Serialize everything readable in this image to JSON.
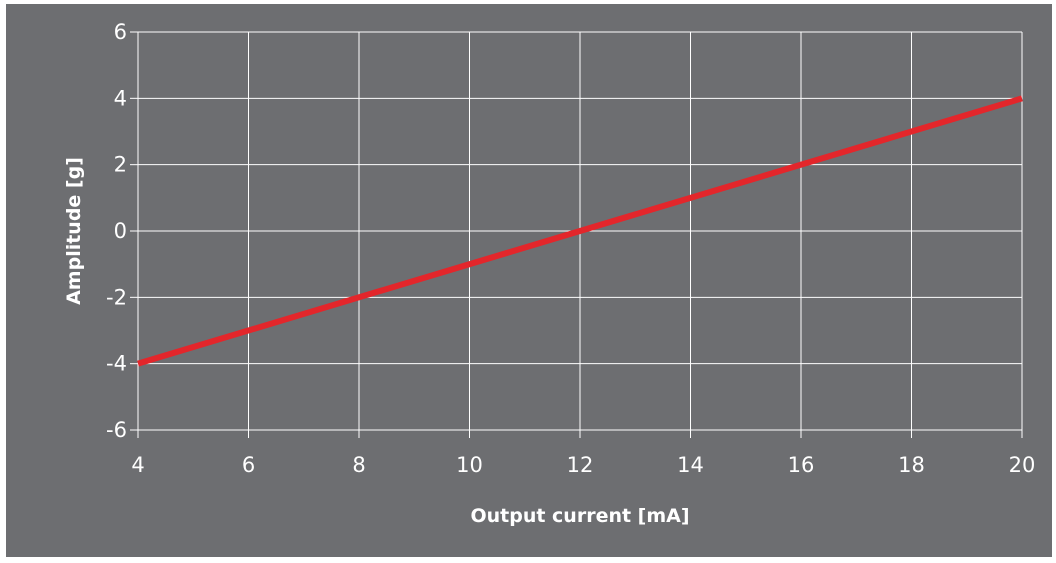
{
  "chart_data": {
    "type": "line",
    "title": "",
    "xlabel": "Output current [mA]",
    "ylabel": "Amplitude [g]",
    "xlim": [
      4,
      20
    ],
    "ylim": [
      -6,
      6
    ],
    "x_ticks": [
      4,
      6,
      8,
      10,
      12,
      14,
      16,
      18,
      20
    ],
    "y_ticks": [
      6,
      4,
      2,
      0,
      -2,
      -4,
      -6
    ],
    "grid": true,
    "legend": "none",
    "series": [
      {
        "x": [
          4,
          20
        ],
        "y": [
          -4,
          4
        ],
        "color": "#e3262b"
      }
    ],
    "colors": {
      "background": "#6d6e71",
      "grid": "#ffffff",
      "text": "#ffffff"
    }
  }
}
